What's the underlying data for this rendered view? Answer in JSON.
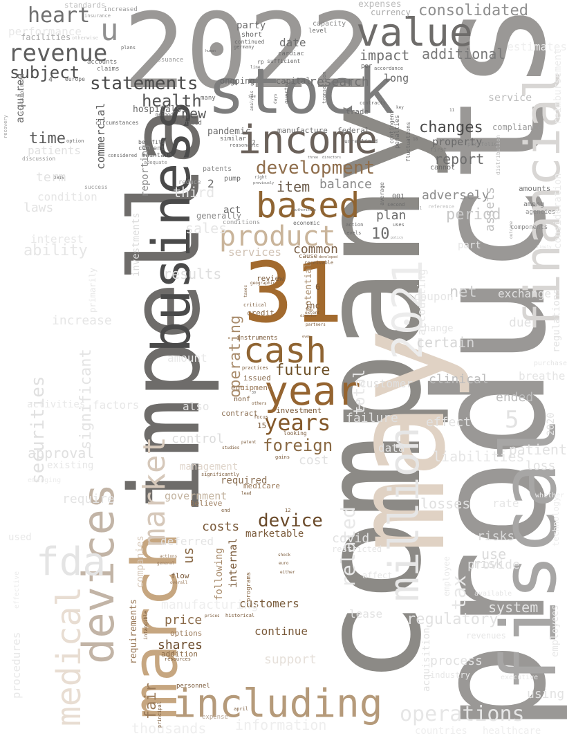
{
  "words": [
    {
      "text": "products",
      "color": "#9a9896"
    },
    {
      "text": "company",
      "color": "#8c8a86"
    },
    {
      "text": "may",
      "color": "#e0d2c4"
    },
    {
      "text": "impella",
      "color": "#6e6c6a"
    },
    {
      "text": "2022",
      "color": "#9a9896"
    },
    {
      "text": "stock",
      "color": "#7d7d7d"
    },
    {
      "text": "fiscal",
      "color": "#a7a6a5"
    },
    {
      "text": "financial",
      "color": "#d8d6d4"
    },
    {
      "text": "business",
      "color": "#4a4a4a"
    },
    {
      "text": "march",
      "color": "#c6a680"
    },
    {
      "text": "31",
      "color": "#a26a2e"
    },
    {
      "text": "income",
      "color": "#6a615a"
    },
    {
      "text": "based",
      "color": "#8f6432"
    },
    {
      "text": "value",
      "color": "#6e6c6a"
    },
    {
      "text": "including",
      "color": "#b59a7a"
    },
    {
      "text": "year",
      "color": "#956430"
    },
    {
      "text": "cash",
      "color": "#8f6432"
    },
    {
      "text": "product",
      "color": "#c9b49a"
    },
    {
      "text": "2021",
      "color": "#ececec"
    },
    {
      "text": "million",
      "color": "#e6e6e6"
    },
    {
      "text": "devices",
      "color": "#c2b4a6"
    },
    {
      "text": "medical",
      "color": "#e8ddd2"
    },
    {
      "text": "market",
      "color": "#d6c8ba"
    },
    {
      "text": "fda",
      "color": "#e4e4e4"
    },
    {
      "text": "revenue",
      "color": "#5e5e5e"
    },
    {
      "text": "heart",
      "color": "#6f6f6f"
    },
    {
      "text": "u",
      "color": "#8f8f8f"
    },
    {
      "text": "statements",
      "color": "#4a4a4a"
    },
    {
      "text": "subject",
      "color": "#4f4f4f"
    },
    {
      "text": "health",
      "color": "#555555"
    },
    {
      "text": "development",
      "color": "#8f6e4c"
    },
    {
      "text": "years",
      "color": "#83582a"
    },
    {
      "text": "foreign",
      "color": "#8a6a45"
    },
    {
      "text": "device",
      "color": "#6a4a2a"
    },
    {
      "text": "consolidated",
      "color": "#8f8f8f"
    },
    {
      "text": "changes",
      "color": "#4a4a4a"
    },
    {
      "text": "future",
      "color": "#6d5028"
    },
    {
      "text": "operating",
      "color": "#a98c6c"
    },
    {
      "text": "impact",
      "color": "#707070"
    },
    {
      "text": "additional",
      "color": "#7a7a7a"
    },
    {
      "text": "report",
      "color": "#6e6e6e"
    },
    {
      "text": "research",
      "color": "#707070"
    },
    {
      "text": "new",
      "color": "#5a5a5a"
    },
    {
      "text": "time",
      "color": "#5a5a5a"
    },
    {
      "text": "item",
      "color": "#6a5a4a"
    },
    {
      "text": "balance",
      "color": "#8a8a8a"
    },
    {
      "text": "common",
      "color": "#7a6048"
    },
    {
      "text": "adversely",
      "color": "#8d8d8d"
    },
    {
      "text": "services",
      "color": "#d0c2b4"
    },
    {
      "text": "plan",
      "color": "#6a6a6a"
    },
    {
      "text": "10",
      "color": "#6e6e6e"
    },
    {
      "text": "costs",
      "color": "#7a5a3a"
    },
    {
      "text": "us",
      "color": "#8a6a48"
    },
    {
      "text": "customers",
      "color": "#7a5c3c"
    },
    {
      "text": "continue",
      "color": "#7a5a3a"
    },
    {
      "text": "price",
      "color": "#8a6a48"
    },
    {
      "text": "shares",
      "color": "#6a4a2a"
    },
    {
      "text": "fair",
      "color": "#9a7a58"
    },
    {
      "text": "government",
      "color": "#c2b29e"
    },
    {
      "text": "marketable",
      "color": "#7a5a3a"
    },
    {
      "text": "clinical",
      "color": "#bcbcbc"
    },
    {
      "text": "ended",
      "color": "#bcbcbc"
    },
    {
      "text": "net",
      "color": "#cfcfcf"
    },
    {
      "text": "certain",
      "color": "#d6d6d6"
    },
    {
      "text": "operations",
      "color": "#e6e6e6"
    },
    {
      "text": "information",
      "color": "#eeeeee"
    },
    {
      "text": "thousands",
      "color": "#eeeeee"
    },
    {
      "text": "tax",
      "color": "#e8e8e8"
    },
    {
      "text": "liabilities",
      "color": "#e6e6e6"
    },
    {
      "text": "regulatory",
      "color": "#e2e2e2"
    },
    {
      "text": "accounting",
      "color": "#e8e8e8"
    },
    {
      "text": "acquisition",
      "color": "#e2e2e2"
    },
    {
      "text": "control",
      "color": "#dcdcdc"
    },
    {
      "text": "cost",
      "color": "#e0e0e0"
    },
    {
      "text": "results",
      "color": "#dedede"
    },
    {
      "text": "assets",
      "color": "#bdbdbd"
    },
    {
      "text": "period",
      "color": "#c8c8c8"
    },
    {
      "text": "property",
      "color": "#6a6a6a"
    },
    {
      "text": "service",
      "color": "#bebebe"
    },
    {
      "text": "compliance",
      "color": "#9a9a9a"
    },
    {
      "text": "amounts",
      "color": "#7a7a7a"
    },
    {
      "text": "among",
      "color": "#7a7a7a"
    },
    {
      "text": "agencies",
      "color": "#8a8a8a"
    },
    {
      "text": "components",
      "color": "#8a8a8a"
    },
    {
      "text": "cannot",
      "color": "#6a6a6a"
    },
    {
      "text": "first",
      "color": "#7a7a7a"
    },
    {
      "text": "portfolio",
      "color": "#8a8a8a"
    },
    {
      "text": "securities",
      "color": "#e0e0e0"
    },
    {
      "text": "approval",
      "color": "#e0e0e0"
    },
    {
      "text": "ability",
      "color": "#e6e6e6"
    },
    {
      "text": "laws",
      "color": "#e2e2e2"
    },
    {
      "text": "patients",
      "color": "#e0e0e0"
    },
    {
      "text": "performance",
      "color": "#e8e8e8"
    },
    {
      "text": "party",
      "color": "#6f6f6f"
    },
    {
      "text": "date",
      "color": "#6f6f6f"
    },
    {
      "text": "capacity",
      "color": "#8a8a8a"
    },
    {
      "text": "currency",
      "color": "#aaaaaa"
    },
    {
      "text": "expenses",
      "color": "#bdbdbd"
    },
    {
      "text": "increased",
      "color": "#9a9a9a"
    },
    {
      "text": "standards",
      "color": "#bdbdbd"
    },
    {
      "text": "commercial",
      "color": "#5f5f5f"
    },
    {
      "text": "acquired",
      "color": "#6a6a6a"
    },
    {
      "text": "hospitals",
      "color": "#6a6a6a"
    },
    {
      "text": "ongoing",
      "color": "#6a6a6a"
    },
    {
      "text": "capital",
      "color": "#6a6a6a"
    },
    {
      "text": "pandemic",
      "color": "#6a6a6a"
    },
    {
      "text": "patents",
      "color": "#8a8a8a"
    },
    {
      "text": "act",
      "color": "#6a6a6a"
    },
    {
      "text": "generally",
      "color": "#8a8a8a"
    },
    {
      "text": "manufacture",
      "color": "#6a6a6a"
    },
    {
      "text": "federal",
      "color": "#6a6a6a"
    },
    {
      "text": "trade",
      "color": "#6a6a6a"
    },
    {
      "text": "long",
      "color": "#6a6a6a"
    },
    {
      "text": "reporting",
      "color": "#8a8a8a"
    },
    {
      "text": "management",
      "color": "#e0d6cc"
    },
    {
      "text": "required",
      "color": "#8a6e52"
    },
    {
      "text": "medicare",
      "color": "#9a7a5a"
    },
    {
      "text": "investment",
      "color": "#7a5a3a"
    },
    {
      "text": "contract",
      "color": "#8a6e52"
    },
    {
      "text": "equipment",
      "color": "#9a7a5a"
    },
    {
      "text": "issued",
      "color": "#8a6e52"
    },
    {
      "text": "credit",
      "color": "#8a6a48"
    },
    {
      "text": "review",
      "color": "#7a5a3a"
    },
    {
      "text": "potential",
      "color": "#a98c6c"
    },
    {
      "text": "inc",
      "color": "#7a5a3a"
    },
    {
      "text": "instruments",
      "color": "#7a5a3a"
    },
    {
      "text": "following",
      "color": "#a98c6c"
    },
    {
      "text": "companies",
      "color": "#d6c8ba"
    },
    {
      "text": "investments",
      "color": "#dcdcdc"
    },
    {
      "text": "requirements",
      "color": "#9a7a5a"
    },
    {
      "text": "options",
      "color": "#9a7a5a"
    },
    {
      "text": "addition",
      "color": "#8a6a48"
    },
    {
      "text": "internal",
      "color": "#7a5a3a"
    },
    {
      "text": "believe",
      "color": "#9a7a5a"
    },
    {
      "text": "flow",
      "color": "#7a5a3a"
    },
    {
      "text": "programs",
      "color": "#8a6a48"
    },
    {
      "text": "support",
      "color": "#e6e0da"
    },
    {
      "text": "related",
      "color": "#e8e8e8"
    },
    {
      "text": "covid",
      "color": "#e2e2e2"
    },
    {
      "text": "customer",
      "color": "#e0e0e0"
    },
    {
      "text": "failure",
      "color": "#e0e0e0"
    },
    {
      "text": "data",
      "color": "#e2e2e2"
    },
    {
      "text": "lease",
      "color": "#e2e2e2"
    },
    {
      "text": "risks",
      "color": "#dadada"
    },
    {
      "text": "use",
      "color": "#dadada"
    },
    {
      "text": "risk",
      "color": "#dadada"
    },
    {
      "text": "losses",
      "color": "#e0e0e0"
    },
    {
      "text": "provide",
      "color": "#e2e2e2"
    },
    {
      "text": "system",
      "color": "#e4e4e4"
    },
    {
      "text": "patient",
      "color": "#e2e2e2"
    },
    {
      "text": "loss",
      "color": "#e2e2e2"
    },
    {
      "text": "exchange",
      "color": "#e2e2e2"
    },
    {
      "text": "due",
      "color": "#e2e2e2"
    },
    {
      "text": "effect",
      "color": "#e2e2e2"
    },
    {
      "text": "regulations",
      "color": "#e2e2e2"
    },
    {
      "text": "breathe",
      "color": "#e4e4e4"
    },
    {
      "text": "employees",
      "color": "#e8e8e8"
    },
    {
      "text": "process",
      "color": "#e2e2e2"
    },
    {
      "text": "using",
      "color": "#e2e2e2"
    },
    {
      "text": "term",
      "color": "#e2e2e2"
    },
    {
      "text": "condition",
      "color": "#e6e6e6"
    },
    {
      "text": "third",
      "color": "#e6e6e6"
    },
    {
      "text": "sales",
      "color": "#e6e6e6"
    },
    {
      "text": "interest",
      "color": "#e8e8e8"
    },
    {
      "text": "increase",
      "color": "#e6e6e6"
    },
    {
      "text": "factors",
      "color": "#e8e8e8"
    },
    {
      "text": "activities",
      "color": "#e8e8e8"
    },
    {
      "text": "procedures",
      "color": "#e8e8e8"
    },
    {
      "text": "used",
      "color": "#e8e8e8"
    },
    {
      "text": "amount",
      "color": "#e8e8e8"
    },
    {
      "text": "also",
      "color": "#e4e4e4"
    },
    {
      "text": "deferred",
      "color": "#e4e4e4"
    },
    {
      "text": "require",
      "color": "#e4e4e4"
    },
    {
      "text": "significant",
      "color": "#e4e4e4"
    },
    {
      "text": "total",
      "color": "#e8e8e8"
    },
    {
      "text": "manufacturing",
      "color": "#eeeeee"
    },
    {
      "text": "consideration",
      "color": "#ececec"
    },
    {
      "text": "reimbursement",
      "color": "#ececec"
    },
    {
      "text": "estimates",
      "color": "#eeeeee"
    },
    {
      "text": "technology",
      "color": "#eeeeee"
    },
    {
      "text": "countries",
      "color": "#eeeeee"
    },
    {
      "text": "healthcare",
      "color": "#eeeeee"
    },
    {
      "text": "2",
      "color": "#6a6a6a"
    },
    {
      "text": "5",
      "color": "#e2e2e2"
    },
    {
      "text": "2020",
      "color": "#e2e2e2"
    },
    {
      "text": "1",
      "color": "#e2e2e2"
    },
    {
      "text": "6",
      "color": "#7a5a3a"
    },
    {
      "text": "15",
      "color": "#7a5a3a"
    },
    {
      "text": "facilities",
      "color": "#a8a8a8"
    },
    {
      "text": "claims",
      "color": "#6a6a6a"
    },
    {
      "text": "accounts",
      "color": "#6a6a6a"
    },
    {
      "text": "europe",
      "color": "#6a6a6a"
    },
    {
      "text": "issuance",
      "color": "#9a9a9a"
    },
    {
      "text": "short",
      "color": "#6a6a6a"
    },
    {
      "text": "continued",
      "color": "#6a6a6a"
    },
    {
      "text": "germany",
      "color": "#6a6a6a"
    },
    {
      "text": "sufficient",
      "color": "#6a6a6a"
    },
    {
      "text": "cardiac",
      "color": "#6a6a6a"
    },
    {
      "text": "level",
      "color": "#6a6a6a"
    },
    {
      "text": "plans",
      "color": "#6a6a6a"
    },
    {
      "text": "stockholders",
      "color": "#8a8a8a"
    },
    {
      "text": "circumstances",
      "color": "#6a6a6a"
    },
    {
      "text": "considered",
      "color": "#6a6a6a"
    },
    {
      "text": "benefits",
      "color": "#6a6a6a"
    },
    {
      "text": "current",
      "color": "#6a6a6a"
    },
    {
      "text": "maintain",
      "color": "#6a6a6a"
    },
    {
      "text": "adequate",
      "color": "#8a8a8a"
    },
    {
      "text": "discussion",
      "color": "#9a9a9a"
    },
    {
      "text": "option",
      "color": "#6a6a6a"
    },
    {
      "text": "success",
      "color": "#9a9a9a"
    },
    {
      "text": "limited",
      "color": "#6a6a6a"
    },
    {
      "text": "method",
      "color": "#6a6a6a"
    },
    {
      "text": "similar",
      "color": "#6a6a6a"
    },
    {
      "text": "reasonable",
      "color": "#6a6a6a"
    },
    {
      "text": "many",
      "color": "#6a6a6a"
    },
    {
      "text": "pump",
      "color": "#6a6a6a"
    },
    {
      "text": "contracts",
      "color": "#6a6a6a"
    },
    {
      "text": "contingent",
      "color": "#6a6a6a"
    },
    {
      "text": "penalties",
      "color": "#6a6a6a"
    },
    {
      "text": "fluctuations",
      "color": "#6a6a6a"
    },
    {
      "text": "accordance",
      "color": "#6a6a6a"
    },
    {
      "text": "unrealized",
      "color": "#6a6a6a"
    },
    {
      "text": "average",
      "color": "#6a6a6a"
    },
    {
      "text": "second",
      "color": "#6a6a6a"
    },
    {
      "text": "individual",
      "color": "#8a8a8a"
    },
    {
      "text": "uses",
      "color": "#6a6a6a"
    },
    {
      "text": "levels",
      "color": "#6a6a6a"
    },
    {
      "text": "action",
      "color": "#6a6a6a"
    },
    {
      "text": "conditions",
      "color": "#9a9a9a"
    },
    {
      "text": "economic",
      "color": "#6a6a6a"
    },
    {
      "text": "receivable",
      "color": "#7a5a3a"
    },
    {
      "text": "cause",
      "color": "#7a5a3a"
    },
    {
      "text": "developed",
      "color": "#7a5a3a"
    },
    {
      "text": "critical",
      "color": "#7a5a3a"
    },
    {
      "text": "practices",
      "color": "#7a5a3a"
    },
    {
      "text": "nonf",
      "color": "#7a5a3a"
    },
    {
      "text": "focus",
      "color": "#7a5a3a"
    },
    {
      "text": "others",
      "color": "#7a5a3a"
    },
    {
      "text": "patent",
      "color": "#7a5a3a"
    },
    {
      "text": "looking",
      "color": "#7a5a3a"
    },
    {
      "text": "studies",
      "color": "#7a5a3a"
    },
    {
      "text": "gains",
      "color": "#7a5a3a"
    },
    {
      "text": "significantly",
      "color": "#7a5a3a"
    },
    {
      "text": "lead",
      "color": "#7a5a3a"
    },
    {
      "text": "end",
      "color": "#7a5a3a"
    },
    {
      "text": "12",
      "color": "#7a5a3a"
    },
    {
      "text": "general",
      "color": "#9a7a5a"
    },
    {
      "text": "overall",
      "color": "#9a7a5a"
    },
    {
      "text": "historical",
      "color": "#7a5a3a"
    },
    {
      "text": "shock",
      "color": "#7a5a3a"
    },
    {
      "text": "euro",
      "color": "#7a5a3a"
    },
    {
      "text": "either",
      "color": "#7a5a3a"
    },
    {
      "text": "actions",
      "color": "#9a7a5a"
    },
    {
      "text": "prices",
      "color": "#7a5a3a"
    },
    {
      "text": "intangible",
      "color": "#7a5a3a"
    },
    {
      "text": "resources",
      "color": "#7a5a3a"
    },
    {
      "text": "personnel",
      "color": "#7a5a3a"
    },
    {
      "text": "principal",
      "color": "#7a5a3a"
    },
    {
      "text": "april",
      "color": "#7a5a3a"
    },
    {
      "text": "expense",
      "color": "#b8a898"
    },
    {
      "text": "taxes",
      "color": "#7a5a3a"
    },
    {
      "text": "geographic",
      "color": "#7a5a3a"
    },
    {
      "text": "extent",
      "color": "#7a5a3a"
    },
    {
      "text": "partners",
      "color": "#7a5a3a"
    },
    {
      "text": "director",
      "color": "#7a5a3a"
    },
    {
      "text": "even",
      "color": "#7a5a3a"
    },
    {
      "text": "authorities",
      "color": "#6a6a6a"
    },
    {
      "text": "transaction",
      "color": "#6a6a6a"
    },
    {
      "text": "quarter",
      "color": "#6a6a6a"
    },
    {
      "text": "days",
      "color": "#6a6a6a"
    },
    {
      "text": "three",
      "color": "#6a6a6a"
    },
    {
      "text": "directors",
      "color": "#6a6a6a"
    },
    {
      "text": "rp",
      "color": "#6a6a6a"
    },
    {
      "text": "right",
      "color": "#6a6a6a"
    },
    {
      "text": "previously",
      "color": "#6a6a6a"
    },
    {
      "text": "human",
      "color": "#6a6a6a"
    },
    {
      "text": "line",
      "color": "#6a6a6a"
    },
    {
      "text": "see",
      "color": "#6a6a6a"
    },
    {
      "text": "analysis",
      "color": "#6a6a6a"
    },
    {
      "text": "per",
      "color": "#6a6a6a"
    },
    {
      "text": "key",
      "color": "#6a6a6a"
    },
    {
      "text": "11",
      "color": "#6a6a6a"
    },
    {
      "text": "18",
      "color": "#6a6a6a"
    },
    {
      "text": "22",
      "color": "#6a6a6a"
    },
    {
      "text": "001",
      "color": "#6a6a6a"
    },
    {
      "text": "4",
      "color": "#6a6a6a"
    },
    {
      "text": "30",
      "color": "#6a6a6a"
    },
    {
      "text": "2015",
      "color": "#6a6a6a"
    },
    {
      "text": "otherwise",
      "color": "#6a6a6a"
    },
    {
      "text": "insurance",
      "color": "#9a9a9a"
    },
    {
      "text": "reduce",
      "color": "#9a9a9a"
    },
    {
      "text": "coupon",
      "color": "#e6e6e6"
    },
    {
      "text": "restricted",
      "color": "#e6e6e6"
    },
    {
      "text": "purchase",
      "color": "#e6e6e6"
    },
    {
      "text": "revenues",
      "color": "#e6e6e6"
    },
    {
      "text": "change",
      "color": "#e6e6e6"
    },
    {
      "text": "part",
      "color": "#e6e6e6"
    },
    {
      "text": "rate",
      "color": "#e6e6e6"
    },
    {
      "text": "affect",
      "color": "#e6e6e6"
    },
    {
      "text": "available",
      "color": "#e6e6e6"
    },
    {
      "text": "recovery",
      "color": "#9a9a9a"
    },
    {
      "text": "existing",
      "color": "#e6e6e6"
    },
    {
      "text": "timely",
      "color": "#e6e6e6"
    },
    {
      "text": "policy",
      "color": "#9a9a9a"
    },
    {
      "text": "outcome",
      "color": "#9a9a9a"
    },
    {
      "text": "distribution",
      "color": "#bdbdbd"
    },
    {
      "text": "reference",
      "color": "#bdbdbd"
    },
    {
      "text": "primarily",
      "color": "#e6e6e6"
    },
    {
      "text": "employee",
      "color": "#e8e8e8"
    },
    {
      "text": "industry",
      "color": "#e8e8e8"
    },
    {
      "text": "executive",
      "color": "#e8e8e8"
    },
    {
      "text": "emerging",
      "color": "#ececec"
    },
    {
      "text": "whether",
      "color": "#ececec"
    },
    {
      "text": "effective",
      "color": "#ececec"
    },
    {
      "text": "otherwise",
      "color": "#ececec"
    }
  ]
}
